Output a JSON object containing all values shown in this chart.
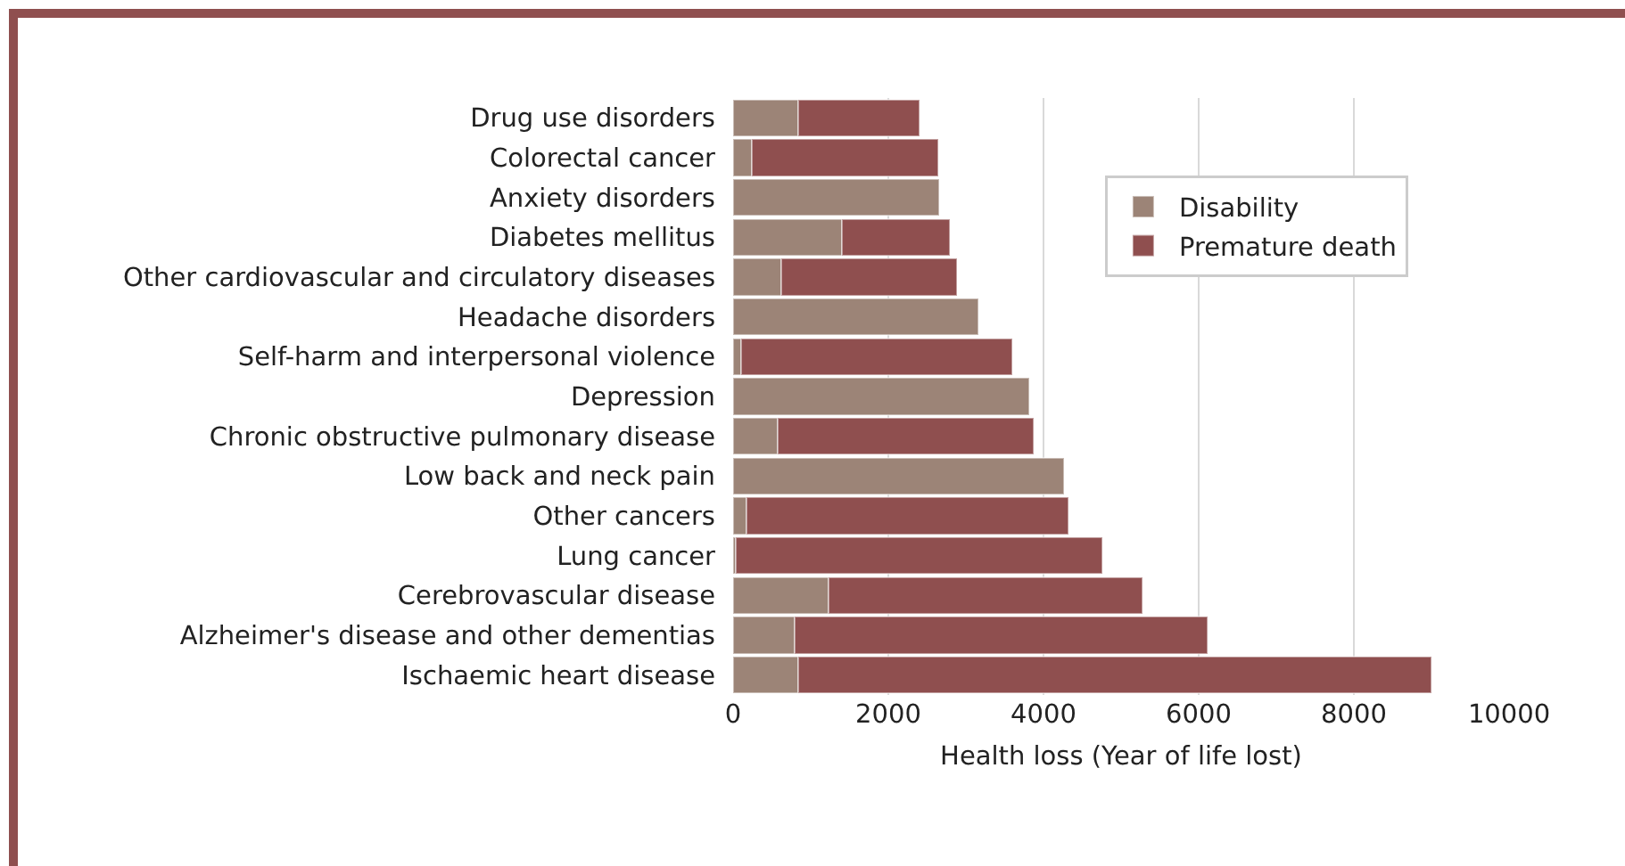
{
  "chart_data": {
    "type": "bar",
    "orientation": "horizontal",
    "stacked": true,
    "xlabel": "Health loss (Year of life lost)",
    "categories": [
      "Drug use disorders",
      "Colorectal cancer",
      "Anxiety disorders",
      "Diabetes mellitus",
      "Other cardiovascular and circulatory diseases",
      "Headache disorders",
      "Self-harm and interpersonal violence",
      "Depression",
      "Chronic obstructive pulmonary disease",
      "Low back and neck pain",
      "Other cancers",
      "Lung cancer",
      "Cerebrovascular disease",
      "Alzheimer's disease and other dementias",
      "Ischaemic heart disease"
    ],
    "series": [
      {
        "name": "Disability",
        "color": "#9c8477",
        "values": [
          840,
          240,
          2650,
          1400,
          620,
          3160,
          100,
          3820,
          580,
          4260,
          170,
          30,
          1230,
          790,
          840
        ]
      },
      {
        "name": "Premature death",
        "color": "#8f4f4f",
        "values": [
          1560,
          2400,
          null,
          1390,
          2270,
          null,
          3500,
          null,
          3290,
          null,
          4150,
          4730,
          4050,
          5320,
          8160
        ]
      }
    ],
    "xlim": [
      0,
      10000
    ],
    "xticks": [
      0,
      2000,
      4000,
      6000,
      8000,
      10000
    ],
    "grid": "x",
    "legend": "top right"
  }
}
